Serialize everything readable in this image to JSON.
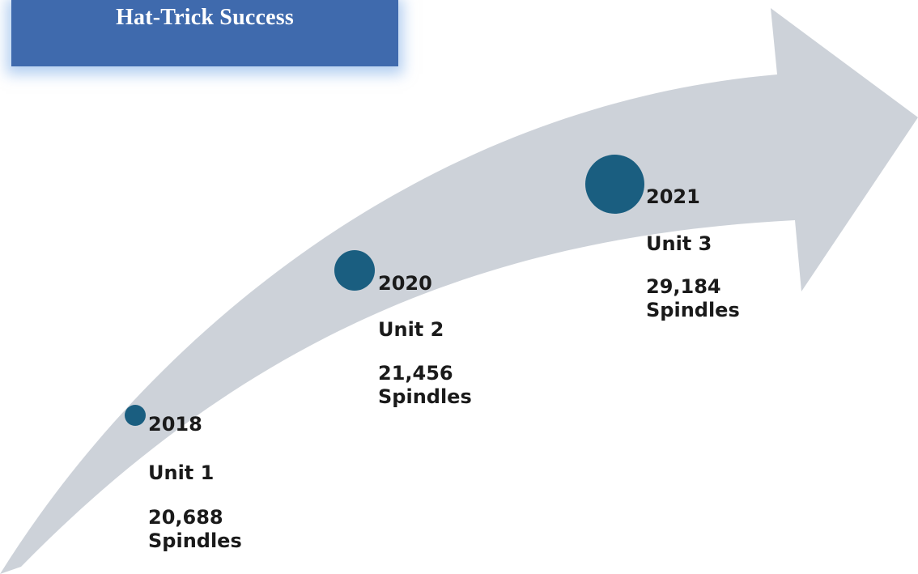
{
  "title": "Hat-Trick Success",
  "colors": {
    "banner": "#3f6aad",
    "arrow": "#cdd2d9",
    "dot": "#1a5e80",
    "text": "#1a1a1a"
  },
  "milestones": [
    {
      "year": "2018",
      "unit": "Unit 1",
      "spindles": "20,688 Spindles"
    },
    {
      "year": "2020",
      "unit": "Unit 2",
      "spindles": "21,456 Spindles"
    },
    {
      "year": "2021",
      "unit": "Unit 3",
      "spindles": "29,184 Spindles"
    }
  ]
}
